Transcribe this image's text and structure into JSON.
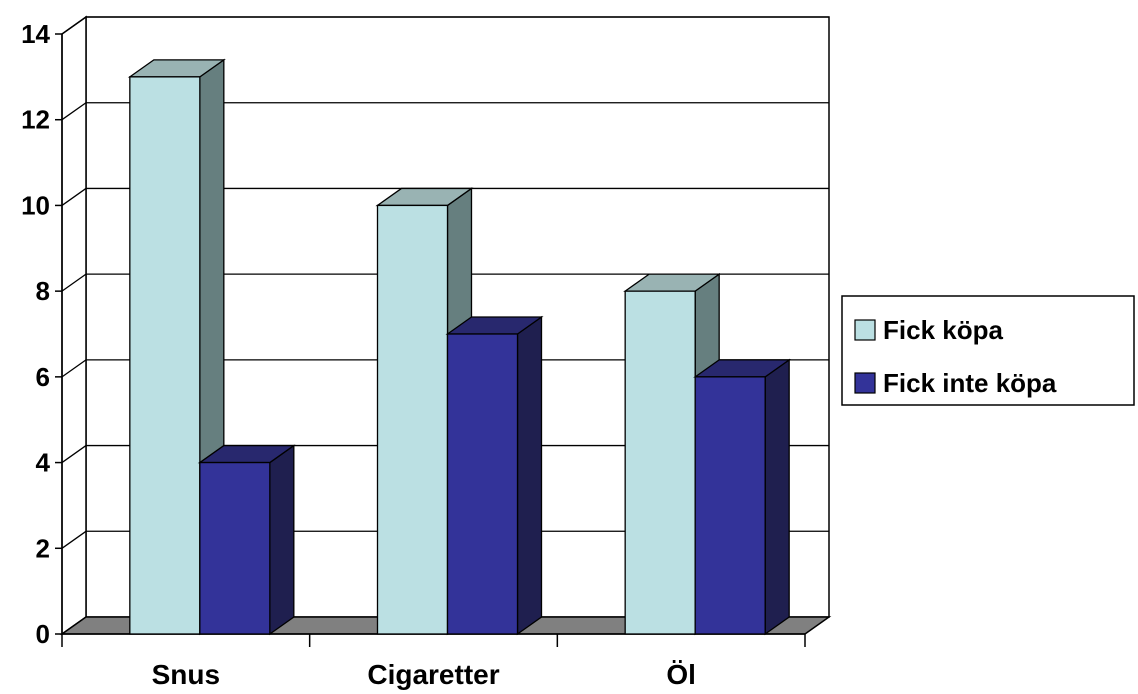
{
  "chart_data": {
    "type": "bar",
    "categories": [
      "Snus",
      "Cigaretter",
      "Öl"
    ],
    "series": [
      {
        "name": "Fick köpa",
        "values": [
          13,
          10,
          8
        ],
        "color": "#BBE0E3",
        "side_color": "#667F7F",
        "top_color": "#99B3B3"
      },
      {
        "name": "Fick inte köpa",
        "values": [
          4,
          7,
          6
        ],
        "color": "#333399",
        "side_color": "#1F1F4F",
        "top_color": "#28286E"
      }
    ],
    "ylim": [
      0,
      14
    ],
    "yticks": [
      "0",
      "2",
      "4",
      "6",
      "8",
      "10",
      "12",
      "14"
    ],
    "grid": true,
    "legend": "right",
    "floor_color": "#808080"
  }
}
